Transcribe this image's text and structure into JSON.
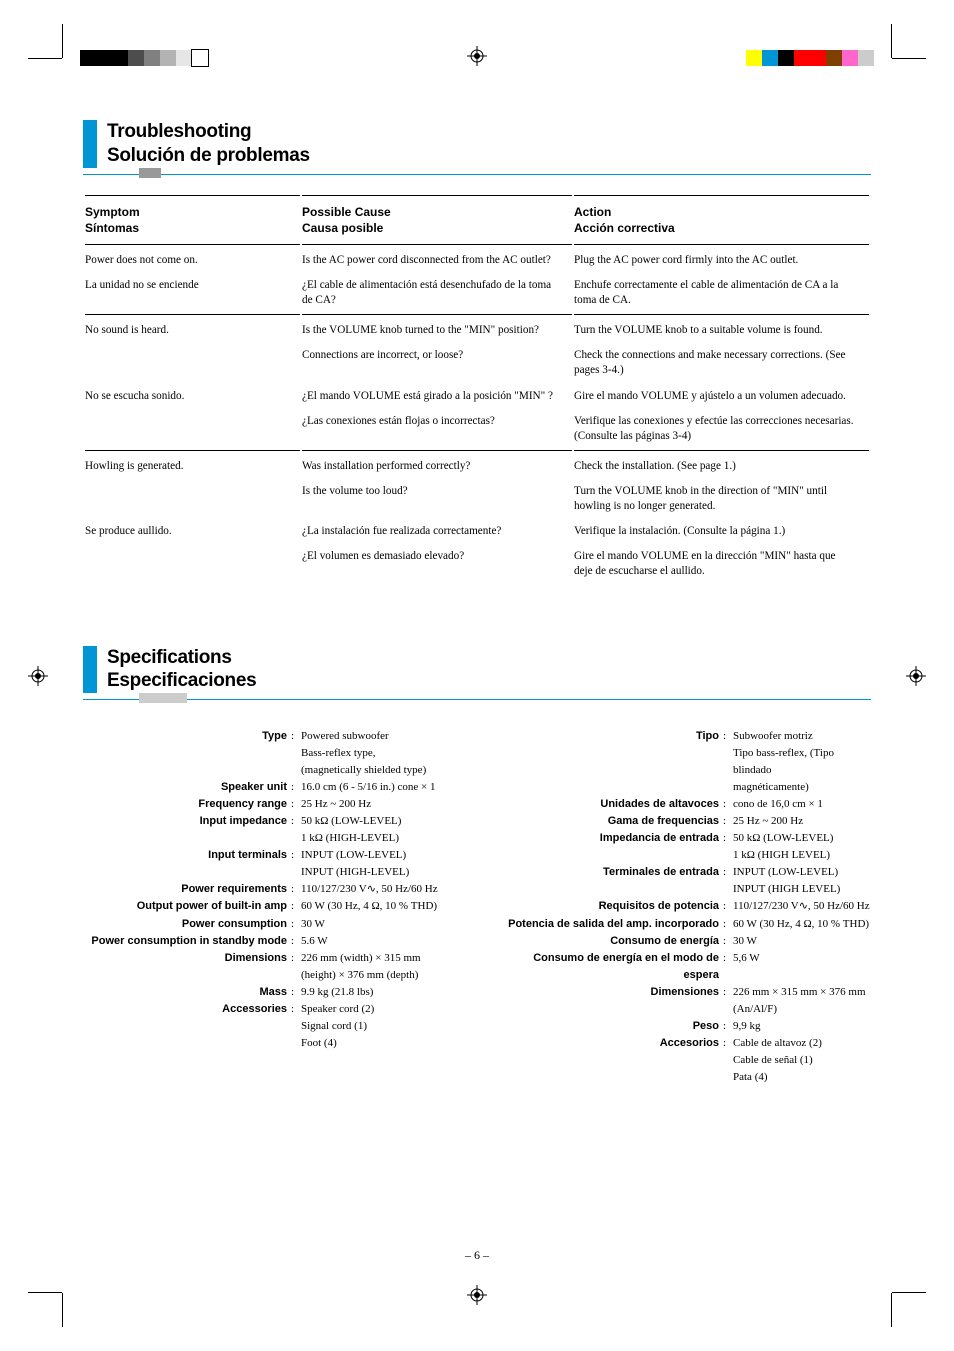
{
  "cropmarks_color": "#000000",
  "colorbar_tl": [
    "#000000",
    "#000000",
    "#000000",
    "#4d4d4d",
    "#808080",
    "#b3b3b3",
    "#e6e6e6",
    "#ffffff"
  ],
  "colorbar_tr": [
    "#ffff00",
    "#0096d6",
    "#000000",
    "#ff0000",
    "#ff0000",
    "#7f3f00",
    "#ff66cc",
    "#cccccc"
  ],
  "section1": {
    "title_en": "Troubleshooting",
    "title_es": "Solución de problemas"
  },
  "trouble": {
    "hdr": {
      "c1a": "Symptom",
      "c1b": "Síntomas",
      "c2a": "Possible Cause",
      "c2b": "Causa posible",
      "c3a": "Action",
      "c3b": "Acción correctiva"
    },
    "rows": [
      {
        "c1": "Power does not come on.",
        "c2": "Is the AC power cord disconnected from the AC outlet?",
        "c3": "Plug the AC power cord firmly into the AC outlet.",
        "sep": true
      },
      {
        "c1": "La unidad no se enciende",
        "c2": "¿El cable de alimentación está desenchufado de la toma de CA?",
        "c3": "Enchufe correctamente el cable de alimentación de CA a la toma de CA."
      },
      {
        "c1": "No sound is heard.",
        "c2": "Is the VOLUME knob turned to the \"MIN\" position?",
        "c3": "Turn the VOLUME knob to a suitable volume is found.",
        "sep": true
      },
      {
        "c1": "",
        "c2": "Connections are incorrect, or loose?",
        "c3": "Check the connections and make necessary corrections. (See pages 3-4.)"
      },
      {
        "c1": "No se escucha sonido.",
        "c2": "¿El mando VOLUME está girado a la posición \"MIN\" ?",
        "c3": "Gire el mando VOLUME y ajústelo a un volumen adecuado."
      },
      {
        "c1": "",
        "c2": "¿Las conexiones están flojas o incorrectas?",
        "c3": "Verifique las conexiones y efectúe las correcciones necesarias. (Consulte las páginas 3-4)"
      },
      {
        "c1": "Howling is generated.",
        "c2": "Was installation performed correctly?",
        "c3": "Check the installation. (See page 1.)",
        "sep": true
      },
      {
        "c1": "",
        "c2": "Is the volume too loud?",
        "c3": "Turn the VOLUME knob in the direction of \"MIN\" until howling is no longer generated."
      },
      {
        "c1": "Se produce aullido.",
        "c2": "¿La instalación fue realizada correctamente?",
        "c3": "Verifique la instalación. (Consulte la página 1.)"
      },
      {
        "c1": "",
        "c2": "¿El volumen es demasiado elevado?",
        "c3": "Gire el mando VOLUME en la dirección \"MIN\" hasta que deje de escucharse el aullido."
      }
    ]
  },
  "section2": {
    "title_en": "Specifications",
    "title_es": "Especificaciones"
  },
  "specs_en": [
    {
      "label": "Type",
      "value": "Powered subwoofer"
    },
    {
      "label": "",
      "value": "Bass-reflex type,"
    },
    {
      "label": "",
      "value": "(magnetically shielded type)"
    },
    {
      "label": "Speaker unit",
      "value": "16.0 cm (6 - 5/16 in.) cone × 1"
    },
    {
      "label": "Frequency range",
      "value": "25 Hz ~ 200 Hz"
    },
    {
      "label": "Input impedance",
      "value": "50 kΩ (LOW-LEVEL)"
    },
    {
      "label": "",
      "value": "1 kΩ (HIGH-LEVEL)"
    },
    {
      "label": "Input terminals",
      "value": "INPUT (LOW-LEVEL)"
    },
    {
      "label": "",
      "value": "INPUT (HIGH-LEVEL)"
    },
    {
      "label": "Power requirements",
      "value": "110/127/230 V∿, 50 Hz/60 Hz"
    },
    {
      "label": "Output power of built-in amp",
      "value": "60 W  (30 Hz, 4 Ω, 10 % THD)"
    },
    {
      "label": "Power consumption",
      "value": "30 W"
    },
    {
      "label": "Power consumption in standby mode",
      "value": "5.6 W"
    },
    {
      "label": "Dimensions",
      "value": "226 mm (width) × 315 mm"
    },
    {
      "label": "",
      "value": "(height) × 376 mm (depth)"
    },
    {
      "label": "Mass",
      "value": "9.9 kg (21.8 lbs)"
    },
    {
      "label": "Accessories",
      "value": "Speaker cord (2)"
    },
    {
      "label": "",
      "value": "Signal cord (1)"
    },
    {
      "label": "",
      "value": "Foot (4)"
    }
  ],
  "specs_es": [
    {
      "label": "Tipo",
      "value": "Subwoofer motriz"
    },
    {
      "label": "",
      "value": "Tipo bass-reflex, (Tipo blindado"
    },
    {
      "label": "",
      "value": "magnéticamente)"
    },
    {
      "label": "Unidades de altavoces",
      "value": "cono de 16,0 cm × 1"
    },
    {
      "label": "Gama de frequencias",
      "value": "25 Hz ~ 200 Hz"
    },
    {
      "label": "Impedancia de entrada",
      "value": "50 kΩ (LOW-LEVEL)"
    },
    {
      "label": "",
      "value": "1 kΩ (HIGH LEVEL)"
    },
    {
      "label": "Terminales de entrada",
      "value": "INPUT (LOW-LEVEL)"
    },
    {
      "label": "",
      "value": "INPUT (HIGH LEVEL)"
    },
    {
      "label": "Requisitos de potencia",
      "value": "110/127/230 V∿, 50 Hz/60 Hz"
    },
    {
      "label": "Potencia de salida del amp. incorporado",
      "value": "60 W (30 Hz, 4 Ω, 10 % THD)"
    },
    {
      "label": "Consumo de energía",
      "value": "30 W"
    },
    {
      "label": "Consumo de energía en el modo de espera",
      "value": "5,6 W"
    },
    {
      "label": "Dimensiones",
      "value": "226 mm × 315 mm × 376 mm"
    },
    {
      "label": "",
      "value": "(An/Al/F)"
    },
    {
      "label": "Peso",
      "value": "9,9 kg"
    },
    {
      "label": "Accesorios",
      "value": "Cable de altavoz (2)"
    },
    {
      "label": "",
      "value": "Cable de señal (1)"
    },
    {
      "label": "",
      "value": "Pata (4)"
    }
  ],
  "page_number": "– 6 –"
}
